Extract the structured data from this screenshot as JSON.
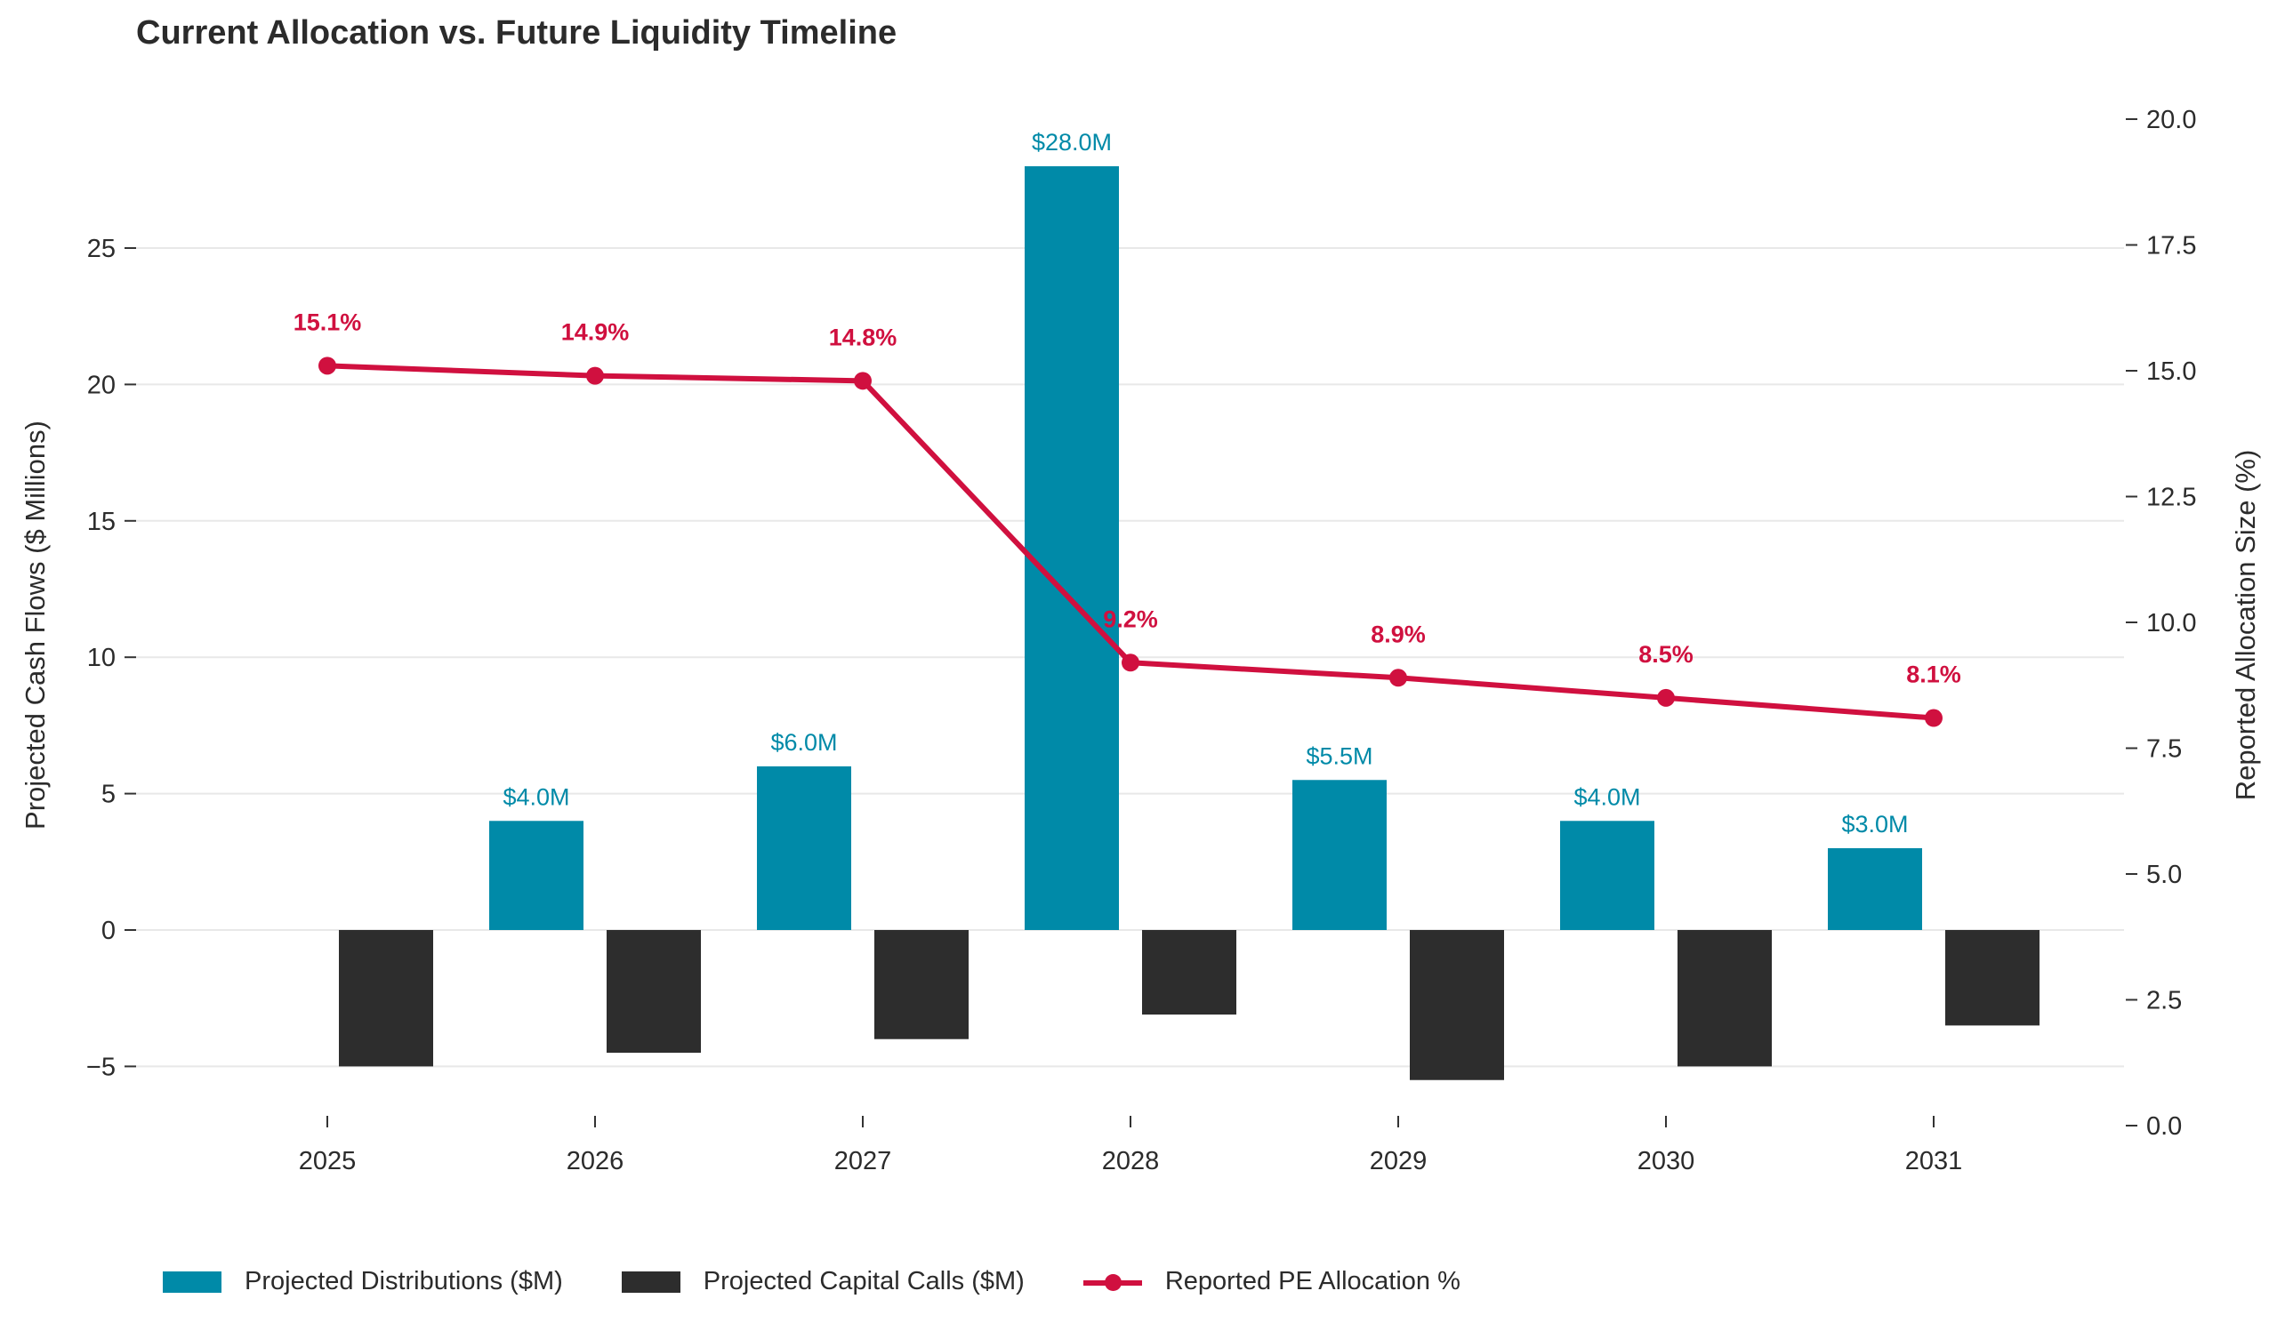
{
  "chart_data": {
    "type": "bar",
    "title": "Current Allocation vs. Future Liquidity Timeline",
    "categories": [
      "2025",
      "2026",
      "2027",
      "2028",
      "2029",
      "2030",
      "2031"
    ],
    "series": [
      {
        "name": "Projected Distributions ($M)",
        "kind": "bar",
        "axis": "left",
        "color": "#008aa8",
        "values": [
          0,
          4.0,
          6.0,
          28.0,
          5.5,
          4.0,
          3.0
        ],
        "labels": [
          "",
          "$4.0M",
          "$6.0M",
          "$28.0M",
          "$5.5M",
          "$4.0M",
          "$3.0M"
        ]
      },
      {
        "name": "Projected Capital Calls ($M)",
        "kind": "bar",
        "axis": "left",
        "color": "#2d2d2d",
        "values": [
          -5.0,
          -4.5,
          -4.0,
          -3.1,
          -5.5,
          -5.0,
          -3.5
        ]
      },
      {
        "name": "Reported PE Allocation %",
        "kind": "line",
        "axis": "right",
        "color": "#d0103f",
        "values": [
          15.1,
          14.9,
          14.8,
          9.2,
          8.9,
          8.5,
          8.1
        ],
        "labels": [
          "15.1%",
          "14.9%",
          "14.8%",
          "9.2%",
          "8.9%",
          "8.5%",
          "8.1%"
        ]
      }
    ],
    "ylabel": "Projected Cash Flows ($ Millions)",
    "y2label": "Reported Allocation Size (%)",
    "ylim": [
      -6.5,
      30.5
    ],
    "y2lim": [
      0,
      20
    ],
    "yticks": [
      -5,
      0,
      5,
      10,
      15,
      20,
      25
    ],
    "ytick_labels": [
      "−5",
      "0",
      "5",
      "10",
      "15",
      "20",
      "25"
    ],
    "y2ticks": [
      0,
      2.5,
      5,
      7.5,
      10,
      12.5,
      15,
      17.5,
      20
    ],
    "y2tick_labels": [
      "0.0",
      "2.5",
      "5.0",
      "7.5",
      "10.0",
      "12.5",
      "15.0",
      "17.5",
      "20.0"
    ],
    "grid": "horizontal",
    "legend_position": "bottom-left"
  }
}
